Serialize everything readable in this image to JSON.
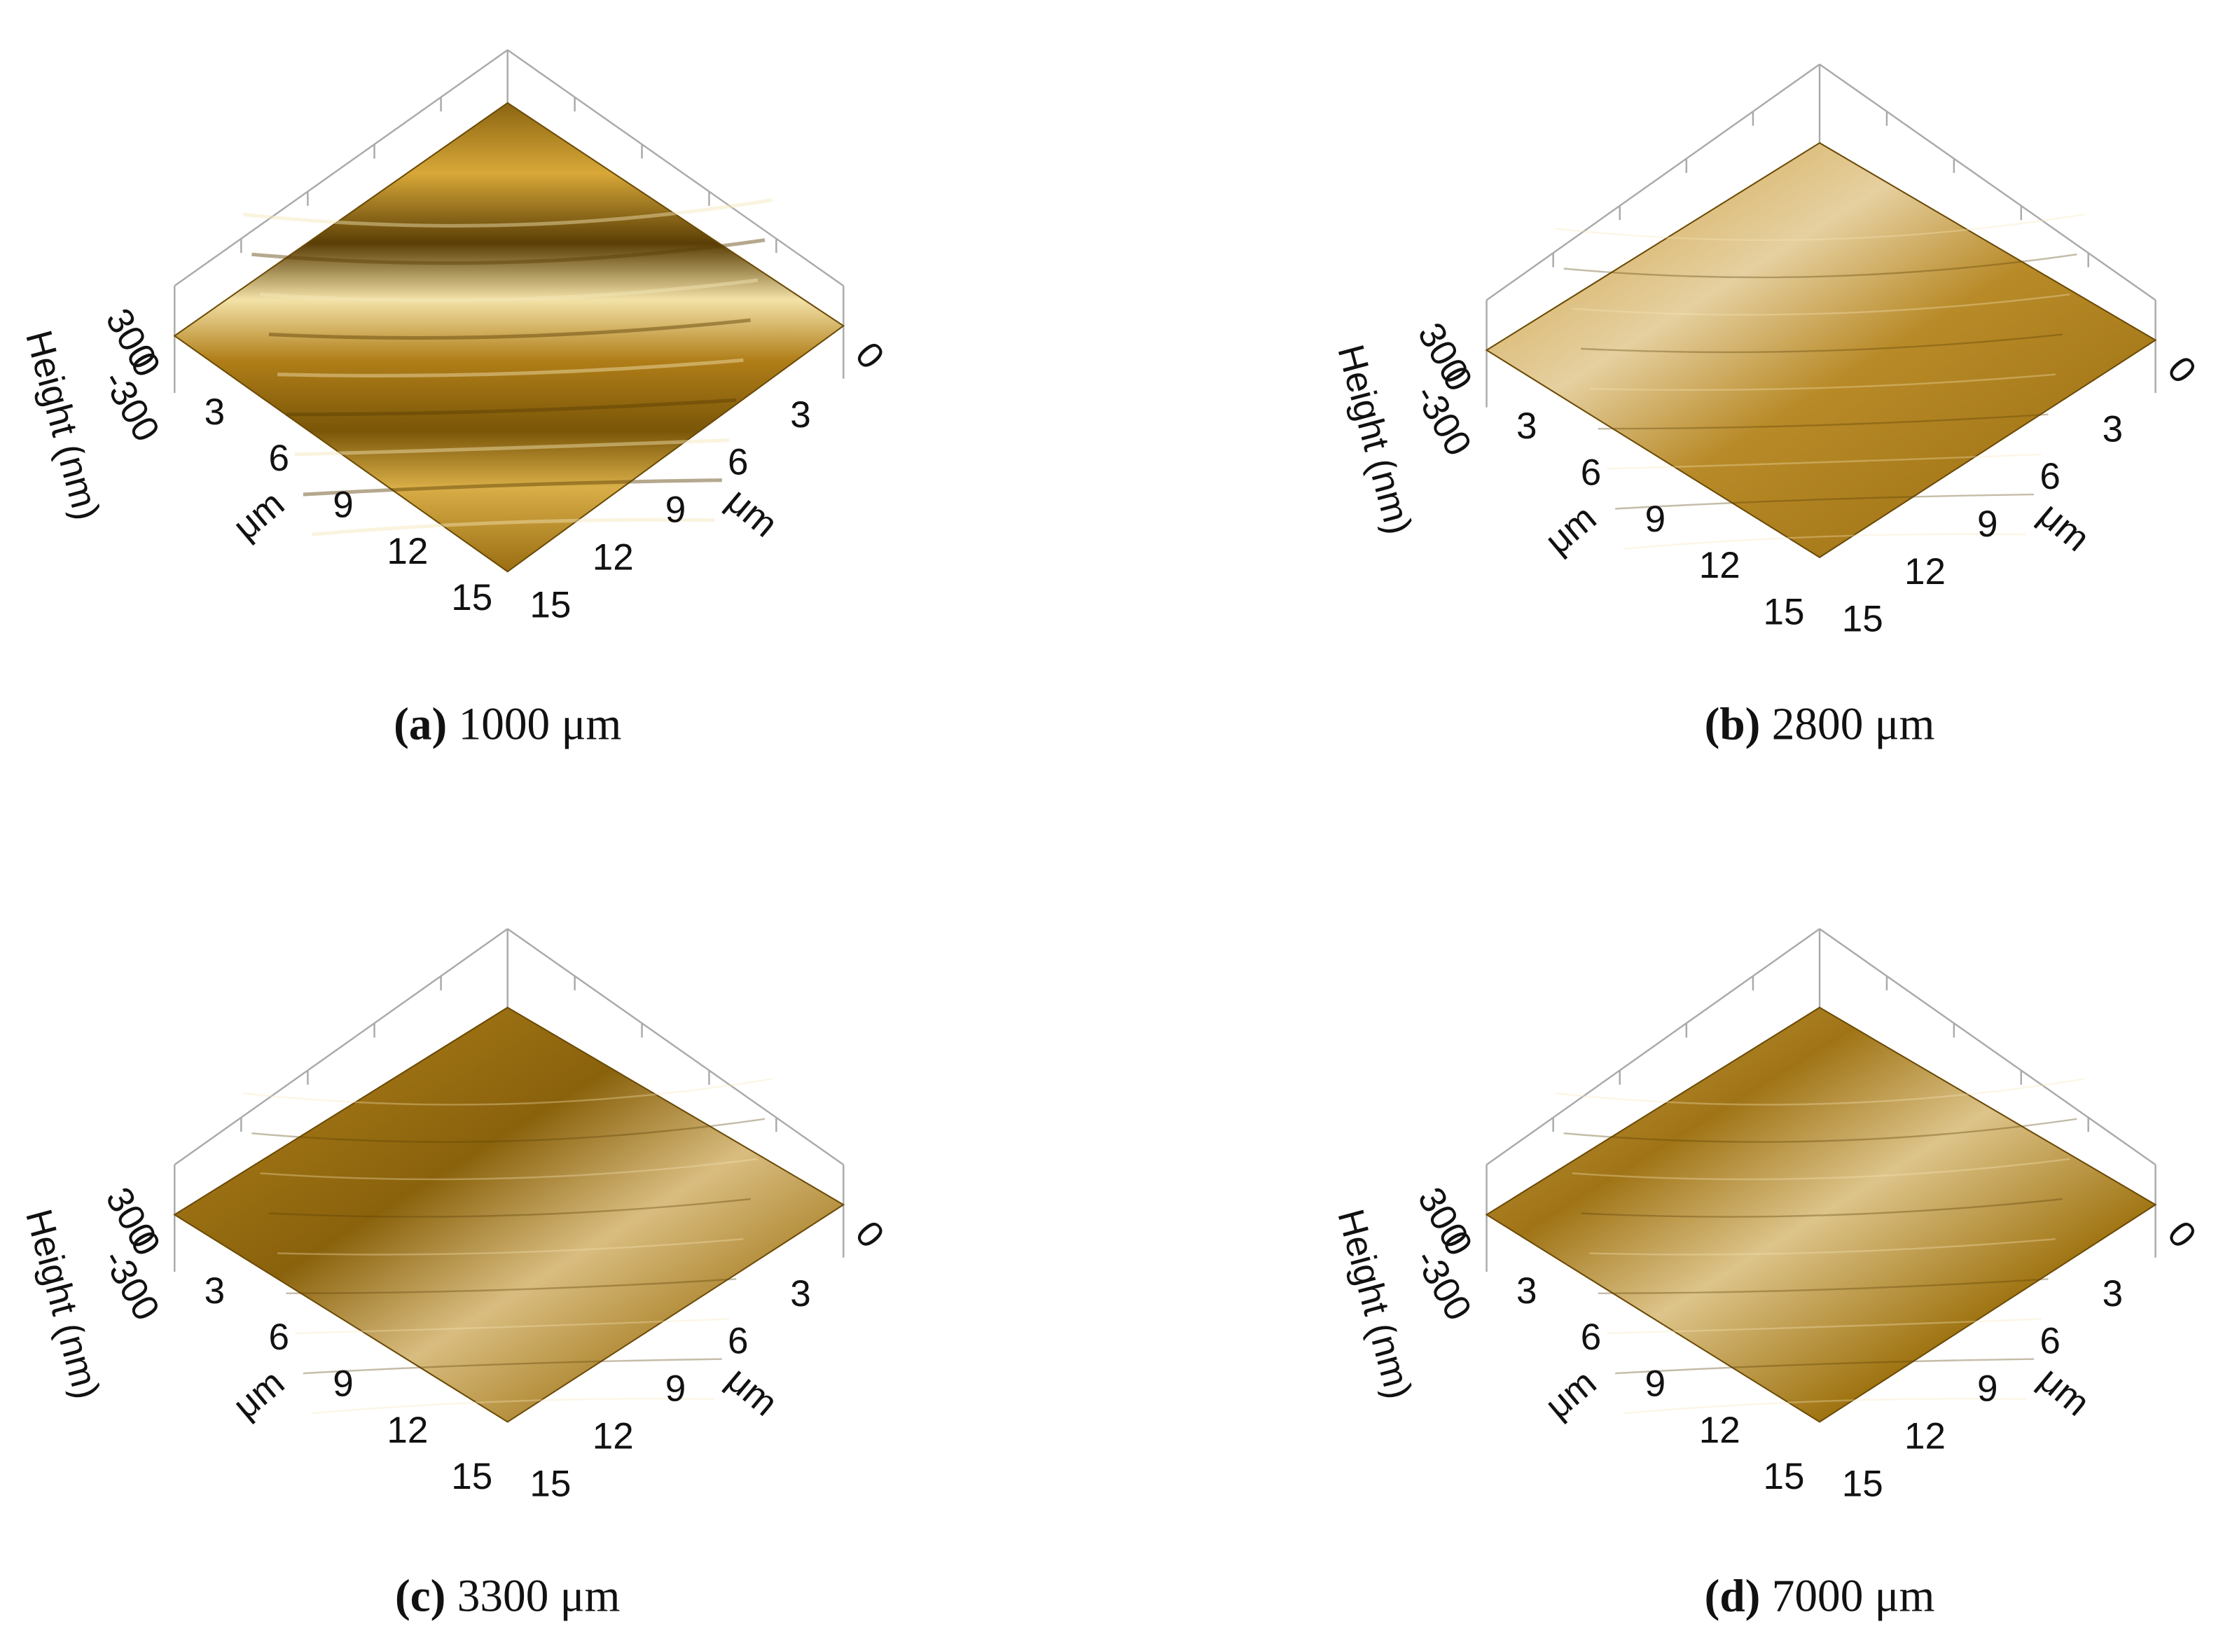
{
  "panels": [
    {
      "label": "(a)",
      "caption": "1000 μm",
      "z_label": "Height (nm)",
      "z_ticks": [
        "300",
        "0",
        "-300"
      ],
      "right_zero": "0",
      "left_ticks": [
        "3",
        "6",
        "9",
        "12",
        "15"
      ],
      "right_ticks": [
        "3",
        "6",
        "9",
        "12",
        "15"
      ],
      "left_unit": "μm",
      "right_unit": "μm"
    },
    {
      "label": "(b)",
      "caption": "2800 μm",
      "z_label": "Height (nm)",
      "z_ticks": [
        "300",
        "0",
        "-300"
      ],
      "right_zero": "0",
      "left_ticks": [
        "3",
        "6",
        "9",
        "12",
        "15"
      ],
      "right_ticks": [
        "3",
        "6",
        "9",
        "12",
        "15"
      ],
      "left_unit": "μm",
      "right_unit": "μm"
    },
    {
      "label": "(c)",
      "caption": "3300 μm",
      "z_label": "Height (nm)",
      "z_ticks": [
        "300",
        "0",
        "-300"
      ],
      "right_zero": "0",
      "left_ticks": [
        "3",
        "6",
        "9",
        "12",
        "15"
      ],
      "right_ticks": [
        "3",
        "6",
        "9",
        "12",
        "15"
      ],
      "left_unit": "μm",
      "right_unit": "μm"
    },
    {
      "label": "(d)",
      "caption": "7000 μm",
      "z_label": "Height (nm)",
      "z_ticks": [
        "300",
        "0",
        "-300"
      ],
      "right_zero": "0",
      "left_ticks": [
        "3",
        "6",
        "9",
        "12",
        "15"
      ],
      "right_ticks": [
        "3",
        "6",
        "9",
        "12",
        "15"
      ],
      "left_unit": "μm",
      "right_unit": "μm"
    }
  ]
}
